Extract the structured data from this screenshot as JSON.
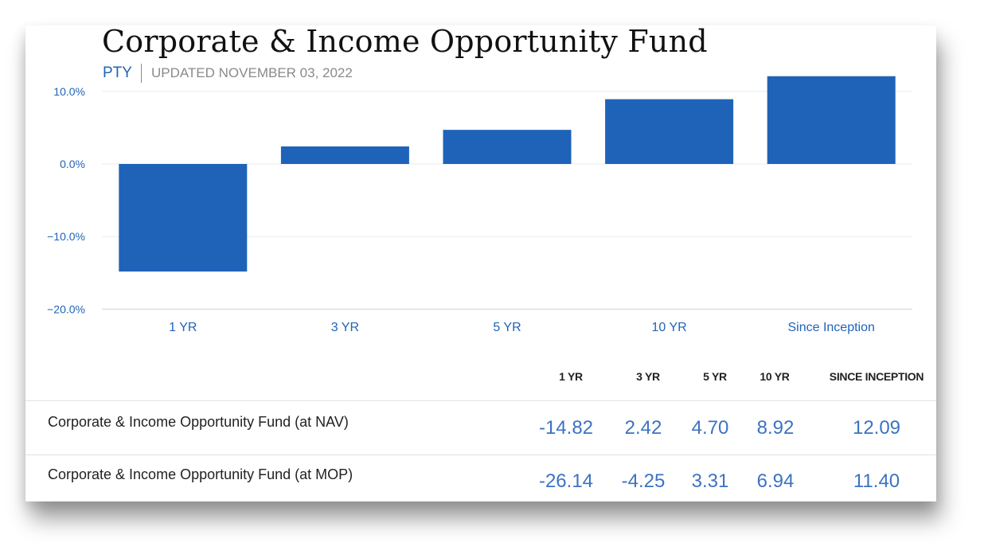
{
  "header": {
    "title": "Corporate & Income Opportunity Fund",
    "ticker": "PTY",
    "updated": "UPDATED NOVEMBER 03, 2022"
  },
  "colors": {
    "bar": "#1e63b8",
    "axis_text": "#1f64b8",
    "gridline": "#e6ebf2",
    "table_value": "#3b73c2"
  },
  "chart_data": {
    "type": "bar",
    "categories": [
      "1 YR",
      "3 YR",
      "5 YR",
      "10 YR",
      "Since Inception"
    ],
    "values": [
      -14.82,
      2.42,
      4.7,
      8.92,
      12.09
    ],
    "yticks": [
      "10.0%",
      "0.0%",
      "−10.0%",
      "−20.0%"
    ],
    "ytick_values": [
      10,
      0,
      -10,
      -20
    ],
    "ylim": [
      -20,
      12.09
    ],
    "grid": true
  },
  "table": {
    "columns": [
      "1 YR",
      "3 YR",
      "5 YR",
      "10 YR",
      "SINCE INCEPTION"
    ],
    "rows": [
      {
        "label": "Corporate & Income Opportunity Fund (at NAV)",
        "values": [
          "-14.82",
          "2.42",
          "4.70",
          "8.92",
          "12.09"
        ]
      },
      {
        "label": "Corporate & Income Opportunity Fund (at MOP)",
        "values": [
          "-26.14",
          "-4.25",
          "3.31",
          "6.94",
          "11.40"
        ]
      }
    ]
  }
}
